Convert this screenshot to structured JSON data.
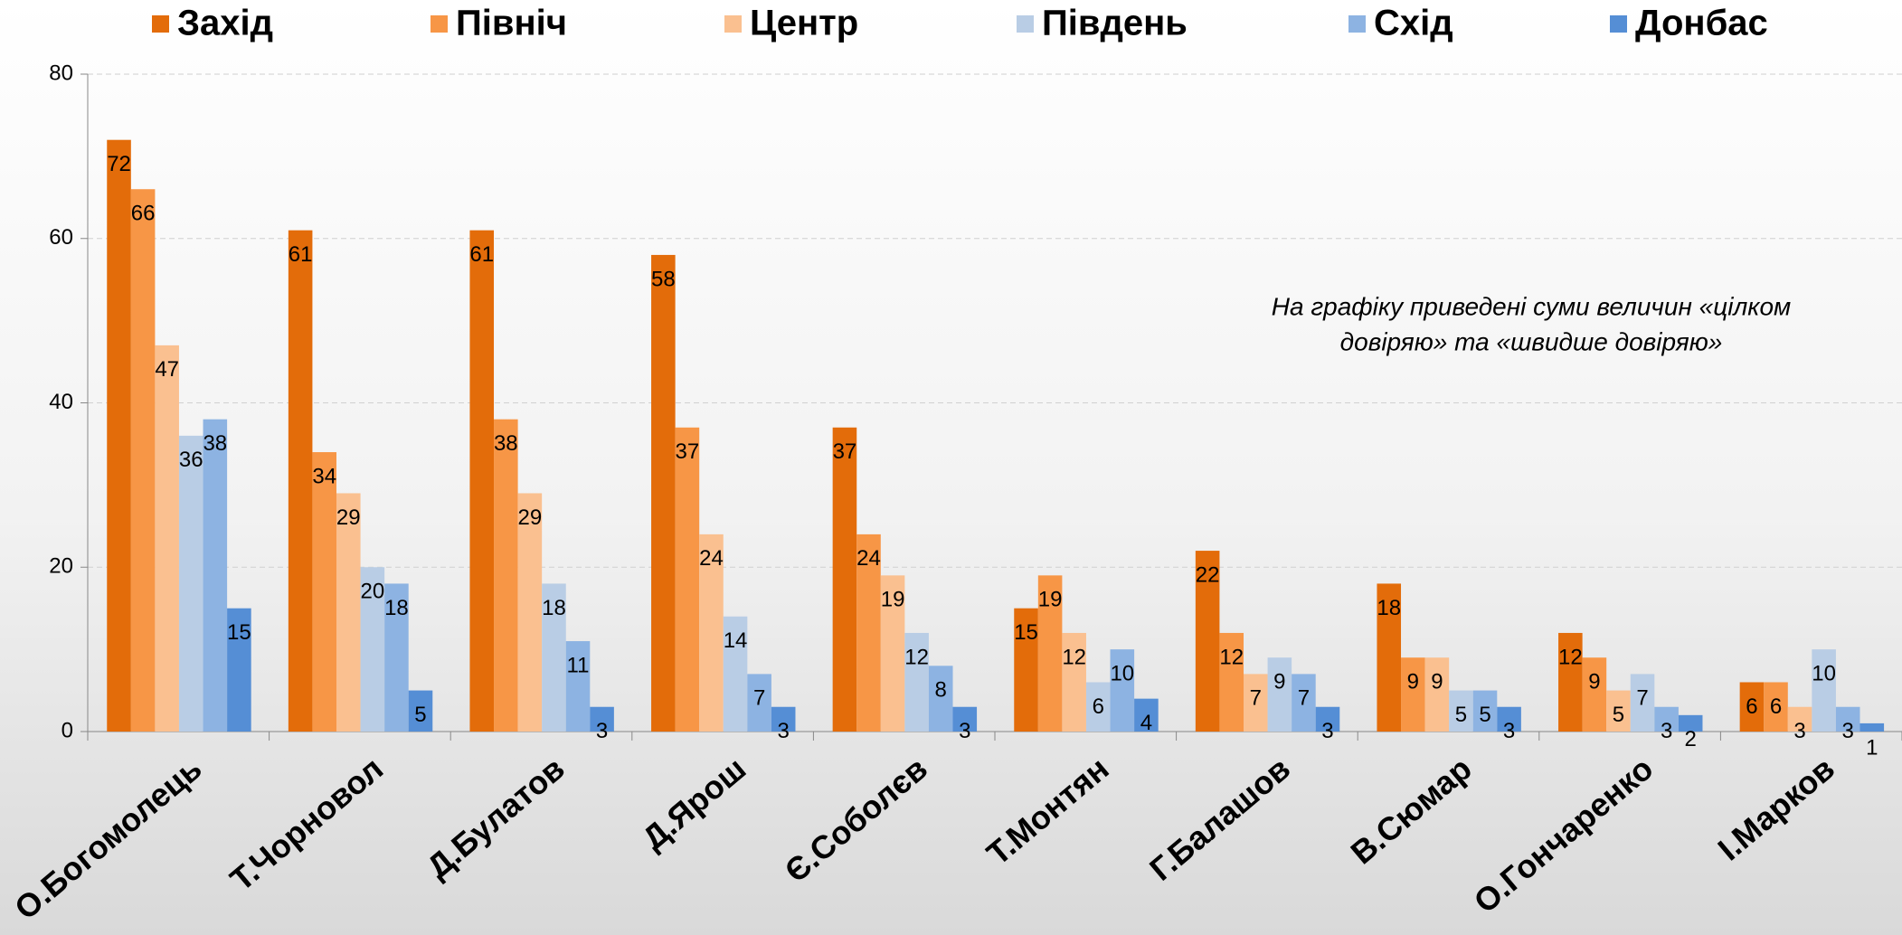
{
  "chart_data": {
    "type": "bar",
    "categories": [
      "О.Богомолець",
      "Т.Чорновол",
      "Д.Булатов",
      "Д.Ярош",
      "Є.Соболєв",
      "Т.Монтян",
      "Г.Балашов",
      "В.Сюмар",
      "О.Гончаренко",
      "І.Марков"
    ],
    "series": [
      {
        "name": "Захід",
        "color": "#e36c0a",
        "values": [
          72,
          61,
          61,
          58,
          37,
          15,
          22,
          18,
          12,
          6
        ]
      },
      {
        "name": "Північ",
        "color": "#f79646",
        "values": [
          66,
          34,
          38,
          37,
          24,
          19,
          12,
          9,
          9,
          6
        ]
      },
      {
        "name": "Центр",
        "color": "#fac090",
        "values": [
          47,
          29,
          29,
          24,
          19,
          12,
          7,
          9,
          5,
          3
        ]
      },
      {
        "name": "Південь",
        "color": "#b9cde5",
        "values": [
          36,
          20,
          18,
          14,
          12,
          6,
          9,
          5,
          7,
          10
        ]
      },
      {
        "name": "Схід",
        "color": "#8db3e2",
        "values": [
          38,
          18,
          11,
          7,
          8,
          10,
          7,
          5,
          3,
          3
        ]
      },
      {
        "name": "Донбас",
        "color": "#558ed5",
        "values": [
          15,
          5,
          3,
          3,
          3,
          4,
          3,
          3,
          2,
          1
        ]
      }
    ],
    "ylim": [
      0,
      80
    ],
    "yticks": [
      0,
      20,
      40,
      60,
      80
    ],
    "grid": true,
    "legend": "top",
    "annotation": [
      "На графіку приведені суми величин «цілком",
      "довіряю» та «швидше довіряю»"
    ]
  }
}
